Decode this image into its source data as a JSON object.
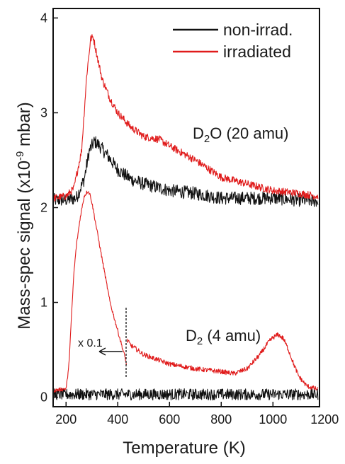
{
  "chart_data": {
    "type": "line",
    "xlabel": "Temperature (K)",
    "ylabel_parts": {
      "pre": "Mass-spec signal (x10",
      "exp": "-9",
      "post": " mbar)"
    },
    "xlim": [
      150,
      1180
    ],
    "ylim": [
      -0.1,
      4.1
    ],
    "xticks": [
      200,
      400,
      600,
      800,
      1000,
      1200
    ],
    "yticks": [
      0,
      1,
      2,
      3,
      4
    ],
    "grid": false,
    "legend_position": "top-right",
    "legend": [
      {
        "name": "non-irrad.",
        "color": "#111111"
      },
      {
        "name": "irradiated",
        "color": "#e01b1b"
      }
    ],
    "annotations": {
      "d2o": {
        "pre": "D",
        "sub": "2",
        "post": "O (20 amu)"
      },
      "d2": {
        "pre": "D",
        "sub": "2",
        "post": " (4 amu)"
      },
      "scale": "x 0.1"
    },
    "series": [
      {
        "name": "D2O non-irradiated",
        "color": "#111111",
        "noise": 0.07,
        "x": [
          150,
          200,
          240,
          270,
          290,
          310,
          330,
          360,
          400,
          450,
          500,
          600,
          700,
          800,
          900,
          1000,
          1100,
          1175
        ],
        "y": [
          2.08,
          2.08,
          2.1,
          2.3,
          2.6,
          2.7,
          2.65,
          2.55,
          2.4,
          2.3,
          2.25,
          2.18,
          2.15,
          2.1,
          2.1,
          2.1,
          2.08,
          2.07
        ]
      },
      {
        "name": "D2O irradiated",
        "color": "#e01b1b",
        "noise": 0.04,
        "x": [
          150,
          200,
          230,
          260,
          280,
          295,
          305,
          320,
          340,
          370,
          400,
          450,
          500,
          560,
          600,
          700,
          800,
          900,
          1000,
          1100,
          1175
        ],
        "y": [
          2.1,
          2.12,
          2.2,
          2.6,
          3.4,
          3.78,
          3.8,
          3.6,
          3.35,
          3.15,
          3.0,
          2.85,
          2.75,
          2.72,
          2.65,
          2.5,
          2.32,
          2.25,
          2.18,
          2.15,
          2.12
        ]
      },
      {
        "name": "D2 non-irradiated",
        "color": "#111111",
        "noise": 0.06,
        "x": [
          150,
          400,
          800,
          1175
        ],
        "y": [
          0.03,
          0.03,
          0.03,
          0.03
        ]
      },
      {
        "name": "D2 irradiated (x0.1 below 435 K)",
        "color": "#e01b1b",
        "noise": 0.02,
        "x": [
          150,
          200,
          210,
          220,
          230,
          240,
          255,
          270,
          285,
          295,
          305,
          320,
          340,
          370,
          400,
          430,
          434
        ],
        "y": [
          0.07,
          0.09,
          0.3,
          0.8,
          1.3,
          1.6,
          1.9,
          2.12,
          2.18,
          2.12,
          1.98,
          1.75,
          1.45,
          1.0,
          0.7,
          0.4,
          0.33
        ]
      },
      {
        "name": "D2 irradiated",
        "color": "#e01b1b",
        "noise": 0.025,
        "x": [
          436,
          450,
          500,
          600,
          700,
          800,
          850,
          900,
          950,
          980,
          1000,
          1020,
          1040,
          1060,
          1080,
          1100,
          1130,
          1175
        ],
        "y": [
          0.6,
          0.55,
          0.45,
          0.35,
          0.3,
          0.27,
          0.25,
          0.3,
          0.45,
          0.57,
          0.63,
          0.66,
          0.62,
          0.5,
          0.35,
          0.22,
          0.12,
          0.08
        ]
      }
    ]
  }
}
